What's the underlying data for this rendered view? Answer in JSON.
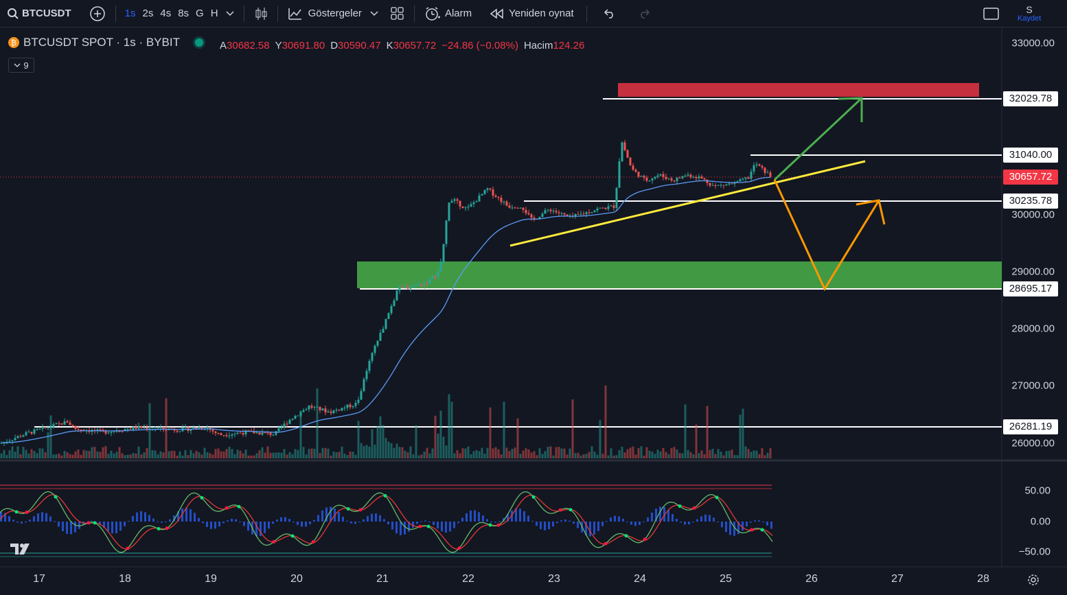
{
  "toolbar": {
    "symbol": "BTCUSDT",
    "timeframes": [
      "1s",
      "2s",
      "4s",
      "8s",
      "G",
      "H"
    ],
    "active_timeframe": "1s",
    "indicators_label": "Göstergeler",
    "alarm_label": "Alarm",
    "replay_label": "Yeniden oynat",
    "user_initial": "S",
    "save_label": "Kaydet"
  },
  "legend": {
    "title": "BTCUSDT SPOT · 1s · BYBIT",
    "ohlc": [
      {
        "label": "A",
        "value": "30682.58"
      },
      {
        "label": "Y",
        "value": "30691.80"
      },
      {
        "label": "D",
        "value": "30590.47"
      },
      {
        "label": "K",
        "value": "30657.72"
      }
    ],
    "change": "−24.86 (−0.08%)",
    "volume_label": "Hacim",
    "volume_value": "124.26",
    "collapsed_count": "9"
  },
  "price_scale": {
    "ticks": [
      "33000.00",
      "30000.00",
      "29000.00",
      "28000.00",
      "27000.00",
      "26000.00"
    ],
    "line_labels": [
      "32029.78",
      "31040.00",
      "30235.78",
      "28695.17",
      "26281.19"
    ],
    "last_price": "30657.72"
  },
  "oscillator_scale": [
    "50.00",
    "0.00",
    "−50.00"
  ],
  "date_ticks": [
    "17",
    "18",
    "19",
    "20",
    "21",
    "22",
    "23",
    "24",
    "25",
    "26",
    "27",
    "28"
  ],
  "colors": {
    "up": "#26a69a",
    "down": "#ef5350",
    "ma": "#5b9cf6",
    "support_zone": "#43a047",
    "resistance_zone": "#c62f3e",
    "trendline": "#ffeb3b",
    "bull_arrow": "#4caf50",
    "bear_arrow": "#ff9800"
  },
  "icons": [
    "search-icon",
    "plus-icon",
    "chevron-down-icon",
    "candles-icon",
    "indicators-icon",
    "layout-icon",
    "alarm-icon",
    "replay-icon",
    "undo-icon",
    "redo-icon",
    "fullscreen-icon",
    "bitcoin-icon",
    "gear-icon"
  ]
}
